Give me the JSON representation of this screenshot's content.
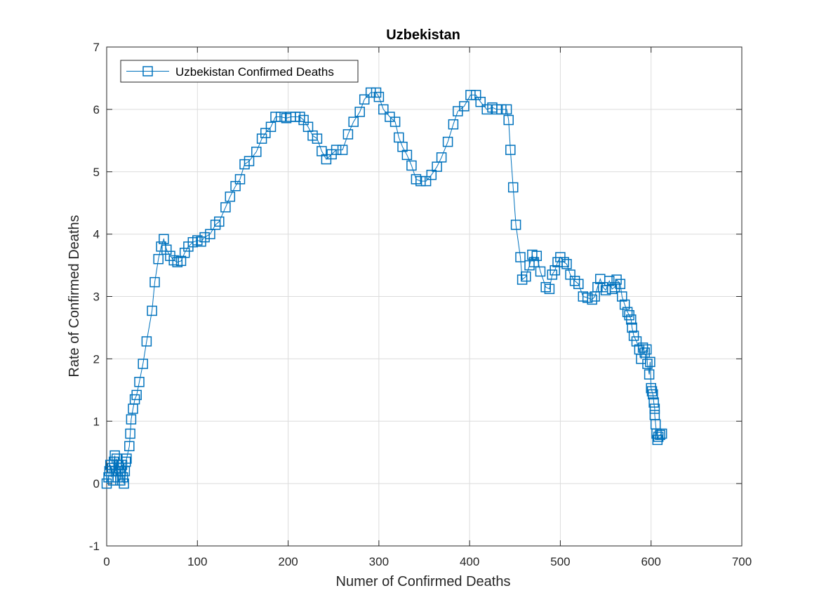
{
  "chart_data": {
    "type": "line",
    "title": "Uzbekistan",
    "xlabel": "Numer of Confirmed Deaths",
    "ylabel": "Rate of Confirmed Deaths",
    "xlim": [
      0,
      700
    ],
    "ylim": [
      -1,
      7
    ],
    "x_ticks": [
      "0",
      "100",
      "200",
      "300",
      "400",
      "500",
      "600",
      "700"
    ],
    "y_ticks": [
      "-1",
      "0",
      "1",
      "2",
      "3",
      "4",
      "5",
      "6",
      "7"
    ],
    "grid": true,
    "legend_position": "top-left",
    "colors": {
      "series": "#0072BD",
      "grid": "#dcdcdc",
      "axis": "#262626"
    },
    "marker": "square",
    "series": [
      {
        "name": "Uzbekistan Confirmed Deaths",
        "points": [
          [
            0,
            0.0
          ],
          [
            2,
            0.1
          ],
          [
            3,
            0.2
          ],
          [
            4,
            0.3
          ],
          [
            5,
            0.1
          ],
          [
            6,
            0.25
          ],
          [
            7,
            0.05
          ],
          [
            8,
            0.35
          ],
          [
            9,
            0.45
          ],
          [
            10,
            0.2
          ],
          [
            11,
            0.4
          ],
          [
            12,
            0.1
          ],
          [
            13,
            0.3
          ],
          [
            14,
            0.25
          ],
          [
            15,
            0.05
          ],
          [
            16,
            0.2
          ],
          [
            17,
            0.3
          ],
          [
            18,
            0.1
          ],
          [
            19,
            0.0
          ],
          [
            20,
            0.2
          ],
          [
            21,
            0.35
          ],
          [
            22,
            0.4
          ],
          [
            25,
            0.6
          ],
          [
            26,
            0.8
          ],
          [
            27,
            1.03
          ],
          [
            29,
            1.2
          ],
          [
            31,
            1.35
          ],
          [
            33,
            1.42
          ],
          [
            36,
            1.63
          ],
          [
            40,
            1.92
          ],
          [
            44,
            2.28
          ],
          [
            50,
            2.77
          ],
          [
            53,
            3.23
          ],
          [
            57,
            3.6
          ],
          [
            60,
            3.8
          ],
          [
            63,
            3.92
          ],
          [
            66,
            3.75
          ],
          [
            70,
            3.65
          ],
          [
            74,
            3.58
          ],
          [
            78,
            3.55
          ],
          [
            82,
            3.57
          ],
          [
            86,
            3.7
          ],
          [
            90,
            3.8
          ],
          [
            95,
            3.87
          ],
          [
            100,
            3.9
          ],
          [
            104,
            3.88
          ],
          [
            108,
            3.95
          ],
          [
            114,
            4.0
          ],
          [
            120,
            4.15
          ],
          [
            124,
            4.2
          ],
          [
            131,
            4.43
          ],
          [
            136,
            4.6
          ],
          [
            142,
            4.77
          ],
          [
            147,
            4.88
          ],
          [
            152,
            5.12
          ],
          [
            157,
            5.17
          ],
          [
            165,
            5.32
          ],
          [
            171,
            5.53
          ],
          [
            175,
            5.62
          ],
          [
            181,
            5.72
          ],
          [
            186,
            5.88
          ],
          [
            192,
            5.88
          ],
          [
            198,
            5.86
          ],
          [
            203,
            5.88
          ],
          [
            208,
            5.88
          ],
          [
            213,
            5.88
          ],
          [
            217,
            5.83
          ],
          [
            222,
            5.72
          ],
          [
            227,
            5.58
          ],
          [
            232,
            5.53
          ],
          [
            237,
            5.33
          ],
          [
            242,
            5.2
          ],
          [
            248,
            5.28
          ],
          [
            253,
            5.35
          ],
          [
            260,
            5.35
          ],
          [
            266,
            5.6
          ],
          [
            272,
            5.8
          ],
          [
            279,
            5.96
          ],
          [
            284,
            6.16
          ],
          [
            291,
            6.27
          ],
          [
            297,
            6.27
          ],
          [
            300,
            6.2
          ],
          [
            305,
            6.0
          ],
          [
            312,
            5.88
          ],
          [
            318,
            5.8
          ],
          [
            322,
            5.55
          ],
          [
            326,
            5.4
          ],
          [
            331,
            5.27
          ],
          [
            336,
            5.1
          ],
          [
            341,
            4.88
          ],
          [
            346,
            4.85
          ],
          [
            352,
            4.85
          ],
          [
            358,
            4.95
          ],
          [
            364,
            5.08
          ],
          [
            369,
            5.23
          ],
          [
            376,
            5.48
          ],
          [
            382,
            5.76
          ],
          [
            387,
            5.97
          ],
          [
            394,
            6.05
          ],
          [
            401,
            6.23
          ],
          [
            407,
            6.23
          ],
          [
            412,
            6.12
          ],
          [
            419,
            6.0
          ],
          [
            425,
            6.03
          ],
          [
            430,
            6.0
          ],
          [
            435,
            6.0
          ],
          [
            441,
            6.0
          ],
          [
            443,
            5.83
          ],
          [
            445,
            5.35
          ],
          [
            448,
            4.75
          ],
          [
            451,
            4.15
          ],
          [
            456,
            3.63
          ],
          [
            458,
            3.27
          ],
          [
            462,
            3.32
          ],
          [
            466,
            3.5
          ],
          [
            469,
            3.67
          ],
          [
            471,
            3.55
          ],
          [
            474,
            3.65
          ],
          [
            478,
            3.4
          ],
          [
            484,
            3.15
          ],
          [
            488,
            3.12
          ],
          [
            491,
            3.35
          ],
          [
            494,
            3.42
          ],
          [
            497,
            3.55
          ],
          [
            500,
            3.63
          ],
          [
            504,
            3.55
          ],
          [
            507,
            3.52
          ],
          [
            511,
            3.35
          ],
          [
            516,
            3.25
          ],
          [
            520,
            3.2
          ],
          [
            525,
            3.0
          ],
          [
            530,
            2.98
          ],
          [
            535,
            2.95
          ],
          [
            538,
            3.0
          ],
          [
            541,
            3.15
          ],
          [
            544,
            3.28
          ],
          [
            547,
            3.15
          ],
          [
            550,
            3.1
          ],
          [
            554,
            3.25
          ],
          [
            557,
            3.12
          ],
          [
            560,
            3.15
          ],
          [
            562,
            3.27
          ],
          [
            566,
            3.2
          ],
          [
            568,
            3.0
          ],
          [
            571,
            2.87
          ],
          [
            574,
            2.75
          ],
          [
            576,
            2.7
          ],
          [
            578,
            2.63
          ],
          [
            579,
            2.5
          ],
          [
            581,
            2.37
          ],
          [
            584,
            2.28
          ],
          [
            587,
            2.15
          ],
          [
            589,
            2.0
          ],
          [
            591,
            2.18
          ],
          [
            593,
            2.1
          ],
          [
            595,
            2.15
          ],
          [
            596,
            1.92
          ],
          [
            598,
            1.75
          ],
          [
            599,
            1.95
          ],
          [
            600,
            1.53
          ],
          [
            601,
            1.48
          ],
          [
            602,
            1.43
          ],
          [
            603,
            1.3
          ],
          [
            604,
            1.2
          ],
          [
            604,
            1.1
          ],
          [
            605,
            0.95
          ],
          [
            606,
            0.8
          ],
          [
            607,
            0.7
          ],
          [
            608,
            0.75
          ],
          [
            610,
            0.78
          ],
          [
            612,
            0.8
          ]
        ]
      }
    ]
  }
}
